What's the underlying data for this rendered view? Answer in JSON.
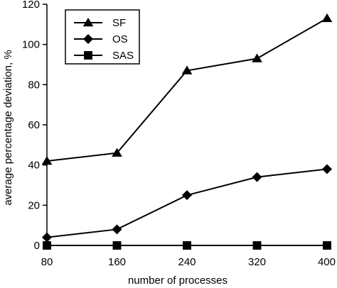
{
  "chart_data": {
    "type": "line",
    "title": "",
    "xlabel": "number of processes",
    "ylabel": "average percentage deviation, %",
    "x": [
      80,
      160,
      240,
      320,
      400
    ],
    "xlim": [
      80,
      400
    ],
    "ylim": [
      0,
      120
    ],
    "xticks": [
      "80",
      "160",
      "240",
      "320",
      "400"
    ],
    "yticks": [
      "0",
      "20",
      "40",
      "60",
      "80",
      "100",
      "120"
    ],
    "grid": false,
    "legend_position": "top-left",
    "series": [
      {
        "name": "SF",
        "marker": "triangle",
        "values": [
          42,
          46,
          87,
          93,
          113
        ]
      },
      {
        "name": "OS",
        "marker": "diamond",
        "values": [
          4,
          8,
          25,
          34,
          38
        ]
      },
      {
        "name": "SAS",
        "marker": "square",
        "values": [
          0,
          0,
          0,
          0,
          0
        ]
      }
    ],
    "colors": {
      "line": "#000000",
      "background": "#ffffff"
    }
  }
}
